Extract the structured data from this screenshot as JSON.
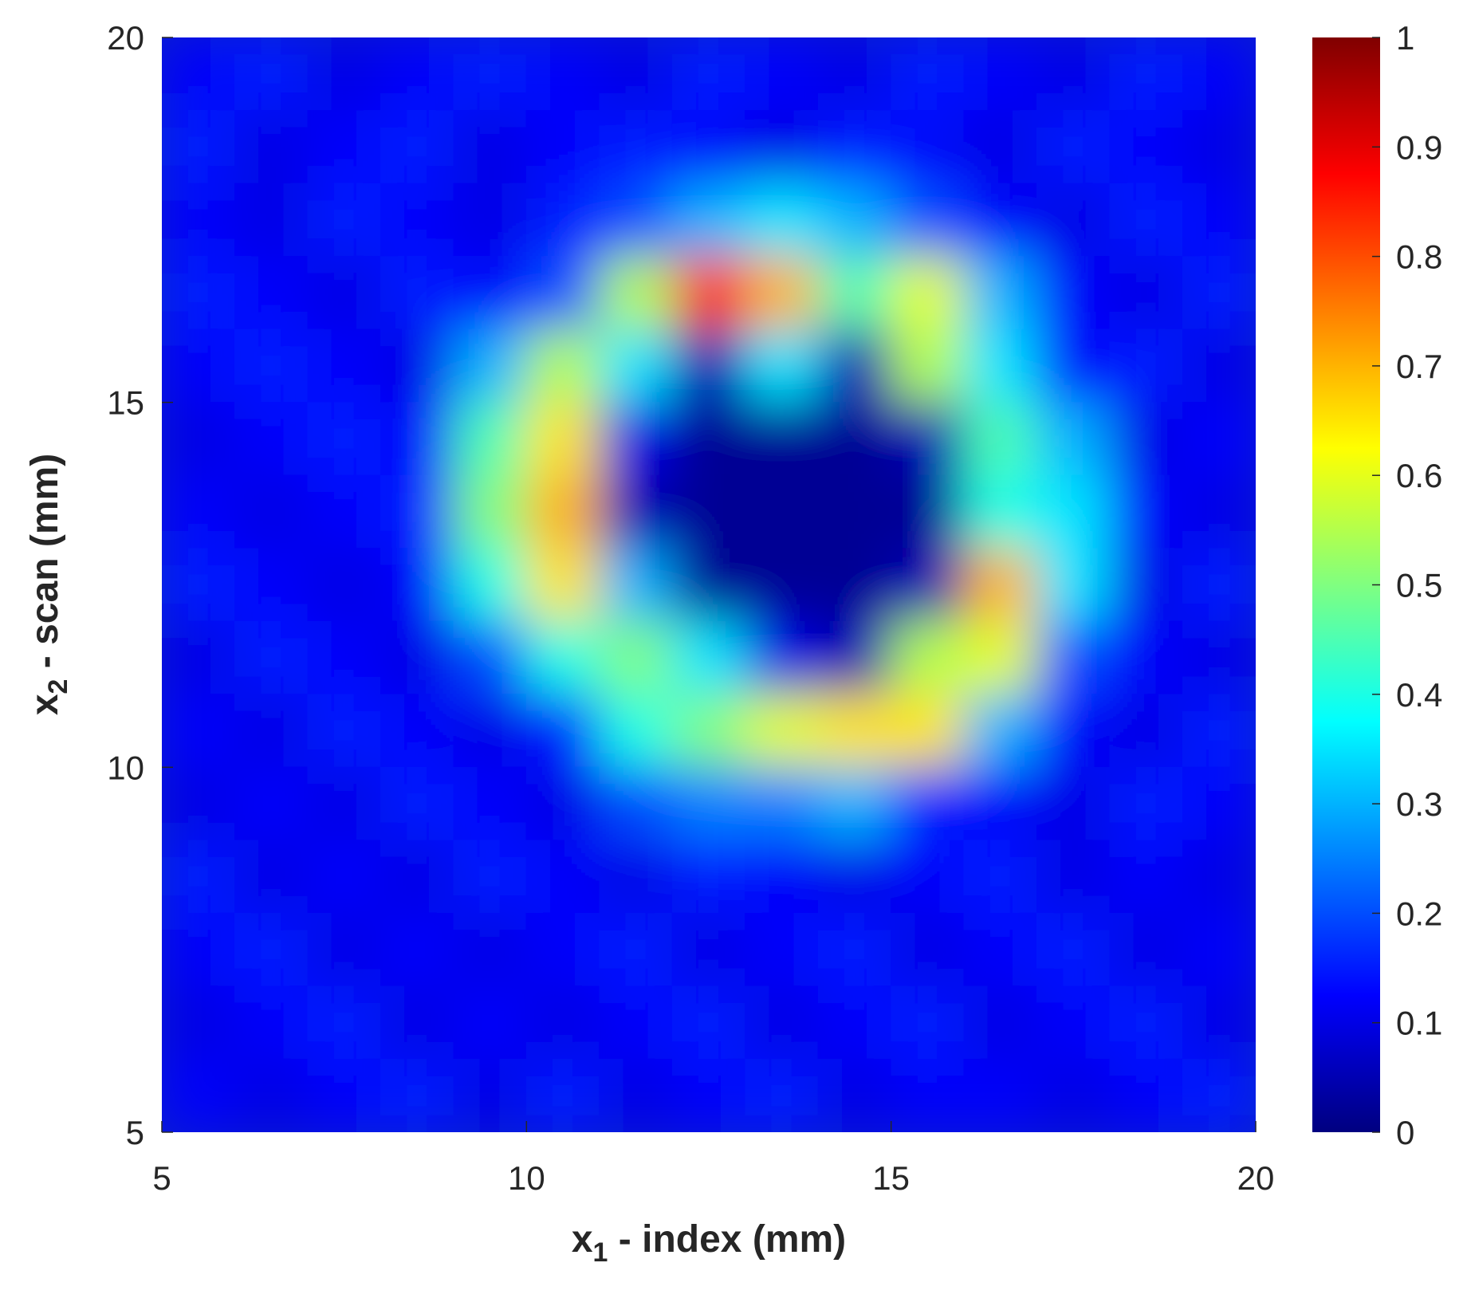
{
  "chart_data": {
    "type": "heatmap",
    "xlabel": {
      "text": "x",
      "sub": "1",
      "rest": " - index (mm)"
    },
    "ylabel": {
      "text": "x",
      "sub": "2",
      "rest": " - scan (mm)"
    },
    "xlim": [
      5,
      20
    ],
    "ylim": [
      5,
      20
    ],
    "xticks": [
      5,
      10,
      15,
      20
    ],
    "yticks": [
      5,
      10,
      15,
      20
    ],
    "colormap": "jet",
    "clim": [
      0,
      1
    ],
    "cticks": [
      0,
      0.1,
      0.2,
      0.3,
      0.4,
      0.5,
      0.6,
      0.7,
      0.8,
      0.9,
      1
    ],
    "z": [
      [
        0.12,
        0.15,
        0.1,
        0.12,
        0.15,
        0.12,
        0.1,
        0.15,
        0.12,
        0.1,
        0.15,
        0.12,
        0.1,
        0.15,
        0.12
      ],
      [
        0.15,
        0.1,
        0.12,
        0.15,
        0.1,
        0.12,
        0.15,
        0.12,
        0.1,
        0.15,
        0.12,
        0.1,
        0.15,
        0.12,
        0.1
      ],
      [
        0.12,
        0.1,
        0.15,
        0.12,
        0.1,
        0.15,
        0.2,
        0.3,
        0.35,
        0.3,
        0.2,
        0.12,
        0.1,
        0.15,
        0.12
      ],
      [
        0.15,
        0.12,
        0.1,
        0.15,
        0.12,
        0.2,
        0.55,
        0.85,
        0.7,
        0.45,
        0.6,
        0.3,
        0.12,
        0.1,
        0.15
      ],
      [
        0.12,
        0.15,
        0.12,
        0.1,
        0.3,
        0.55,
        0.35,
        0.05,
        0.35,
        0.05,
        0.55,
        0.35,
        0.12,
        0.15,
        0.1
      ],
      [
        0.1,
        0.12,
        0.15,
        0.12,
        0.45,
        0.65,
        0.1,
        0.02,
        0.02,
        0.02,
        0.05,
        0.45,
        0.3,
        0.1,
        0.12
      ],
      [
        0.12,
        0.1,
        0.12,
        0.15,
        0.5,
        0.7,
        0.05,
        0.02,
        0.02,
        0.02,
        0.02,
        0.4,
        0.35,
        0.12,
        0.1
      ],
      [
        0.15,
        0.12,
        0.1,
        0.12,
        0.4,
        0.65,
        0.3,
        0.02,
        0.02,
        0.02,
        0.05,
        0.7,
        0.35,
        0.1,
        0.15
      ],
      [
        0.1,
        0.15,
        0.12,
        0.1,
        0.2,
        0.4,
        0.5,
        0.35,
        0.1,
        0.05,
        0.55,
        0.6,
        0.2,
        0.12,
        0.1
      ],
      [
        0.12,
        0.1,
        0.15,
        0.12,
        0.1,
        0.15,
        0.4,
        0.5,
        0.6,
        0.65,
        0.65,
        0.3,
        0.12,
        0.1,
        0.15
      ],
      [
        0.1,
        0.12,
        0.1,
        0.15,
        0.12,
        0.1,
        0.2,
        0.25,
        0.25,
        0.3,
        0.15,
        0.12,
        0.1,
        0.15,
        0.12
      ],
      [
        0.15,
        0.1,
        0.12,
        0.1,
        0.15,
        0.12,
        0.1,
        0.15,
        0.12,
        0.1,
        0.12,
        0.15,
        0.1,
        0.12,
        0.1
      ],
      [
        0.12,
        0.15,
        0.1,
        0.12,
        0.1,
        0.12,
        0.15,
        0.1,
        0.12,
        0.15,
        0.1,
        0.12,
        0.15,
        0.1,
        0.12
      ],
      [
        0.1,
        0.12,
        0.15,
        0.1,
        0.12,
        0.1,
        0.12,
        0.15,
        0.1,
        0.12,
        0.15,
        0.1,
        0.12,
        0.15,
        0.1
      ],
      [
        0.12,
        0.1,
        0.12,
        0.15,
        0.1,
        0.15,
        0.1,
        0.12,
        0.15,
        0.1,
        0.12,
        0.12,
        0.1,
        0.12,
        0.15
      ]
    ]
  }
}
